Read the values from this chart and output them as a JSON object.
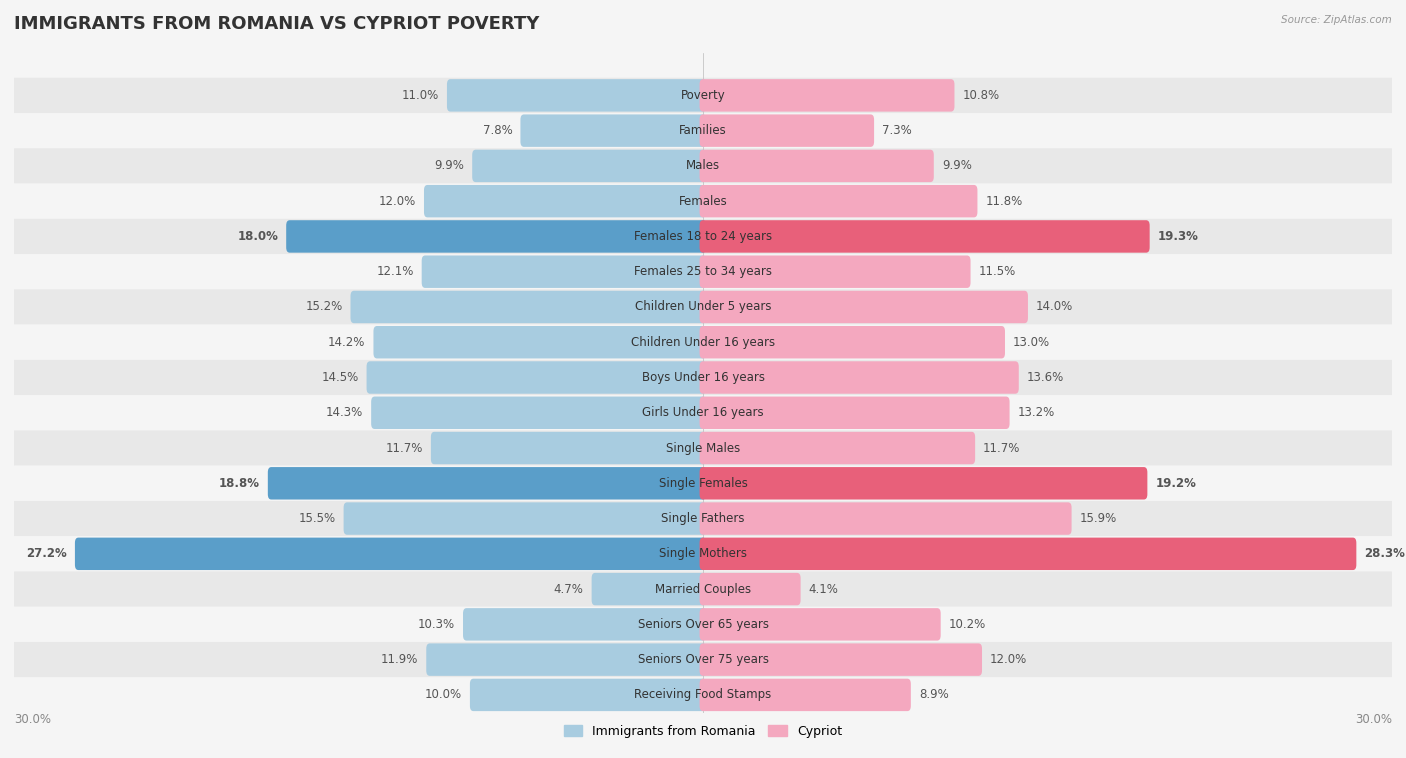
{
  "title": "IMMIGRANTS FROM ROMANIA VS CYPRIOT POVERTY",
  "source": "Source: ZipAtlas.com",
  "categories": [
    "Poverty",
    "Families",
    "Males",
    "Females",
    "Females 18 to 24 years",
    "Females 25 to 34 years",
    "Children Under 5 years",
    "Children Under 16 years",
    "Boys Under 16 years",
    "Girls Under 16 years",
    "Single Males",
    "Single Females",
    "Single Fathers",
    "Single Mothers",
    "Married Couples",
    "Seniors Over 65 years",
    "Seniors Over 75 years",
    "Receiving Food Stamps"
  ],
  "left_values": [
    11.0,
    7.8,
    9.9,
    12.0,
    18.0,
    12.1,
    15.2,
    14.2,
    14.5,
    14.3,
    11.7,
    18.8,
    15.5,
    27.2,
    4.7,
    10.3,
    11.9,
    10.0
  ],
  "right_values": [
    10.8,
    7.3,
    9.9,
    11.8,
    19.3,
    11.5,
    14.0,
    13.0,
    13.6,
    13.2,
    11.7,
    19.2,
    15.9,
    28.3,
    4.1,
    10.2,
    12.0,
    8.9
  ],
  "left_color": "#a8cce0",
  "right_color": "#f4a8bf",
  "highlight_left_color": "#5a9ec9",
  "highlight_right_color": "#e8607a",
  "row_bg_even": "#e8e8e8",
  "row_bg_odd": "#f5f5f5",
  "background_color": "#f5f5f5",
  "xlim": 30.0,
  "legend_left": "Immigrants from Romania",
  "legend_right": "Cypriot",
  "title_fontsize": 13,
  "cat_fontsize": 8.5,
  "value_fontsize": 8.5,
  "highlight_rows": [
    4,
    11,
    13
  ]
}
